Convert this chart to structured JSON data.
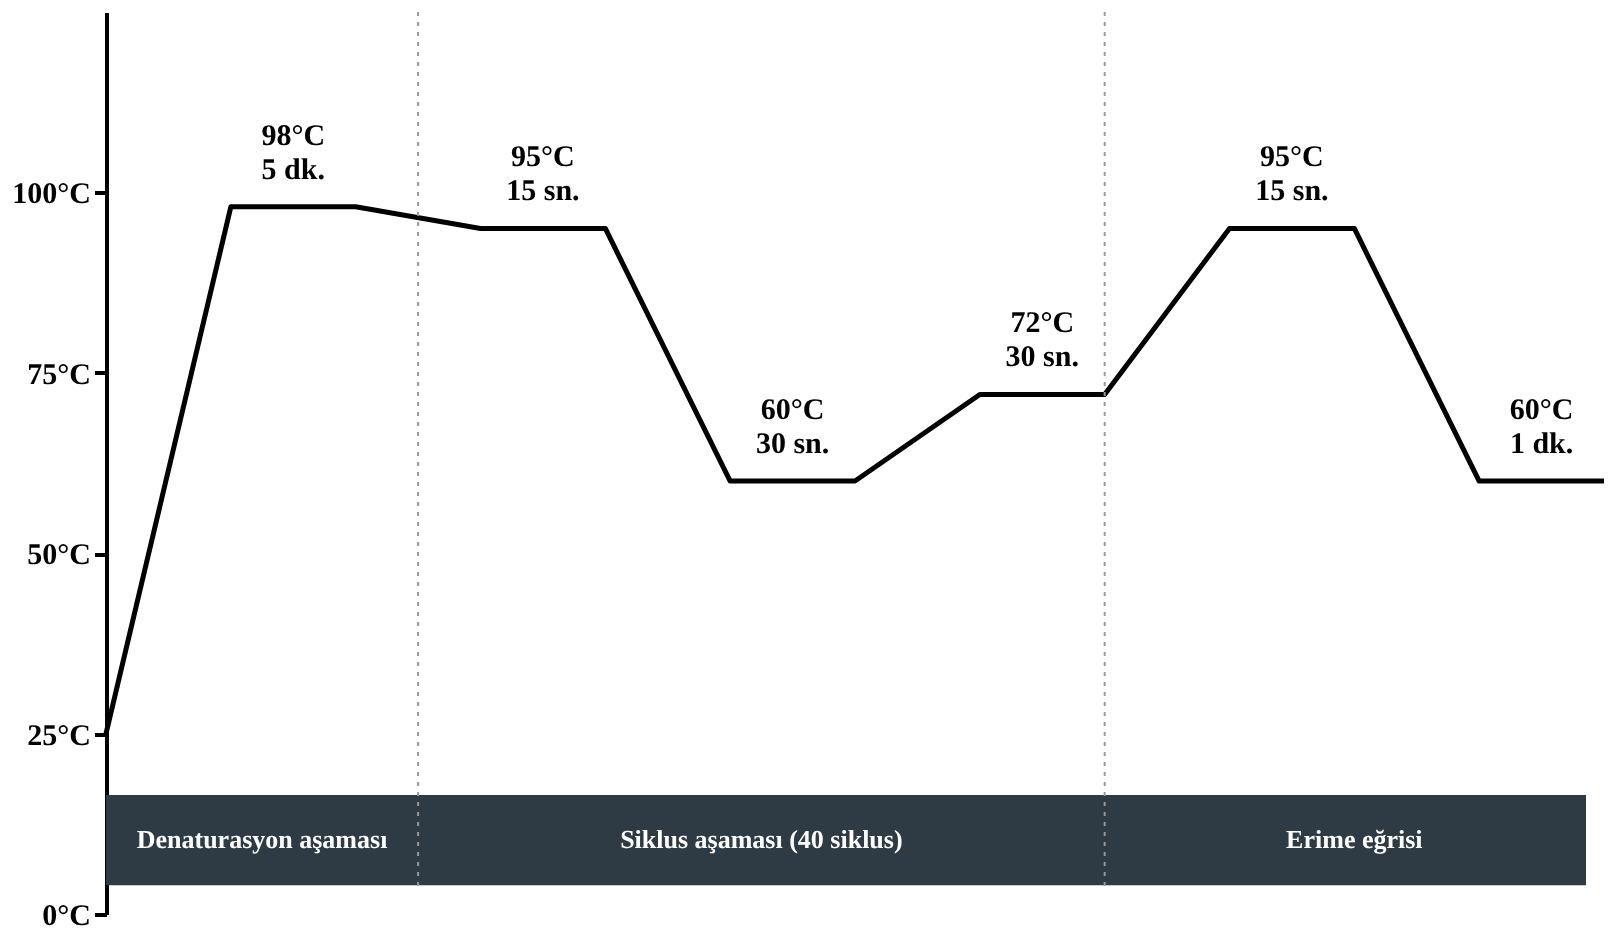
{
  "chart_data": {
    "type": "line",
    "categories": [
      null,
      null,
      null,
      null,
      null,
      null,
      null,
      null,
      null,
      null,
      null,
      null,
      null
    ],
    "series": [
      {
        "color": "#000000",
        "values": [
          25,
          98,
          98,
          95,
          95,
          60,
          60,
          72,
          72,
          95,
          95,
          60,
          60
        ]
      }
    ],
    "ylim": [
      0,
      125
    ],
    "yticks": [
      {
        "value": 0,
        "label": "0°C"
      },
      {
        "value": 25,
        "label": "25°C"
      },
      {
        "value": 50,
        "label": "50°C"
      },
      {
        "value": 75,
        "label": "75°C"
      },
      {
        "value": 100,
        "label": "100°C"
      }
    ],
    "tick_labels": "y",
    "grid": false,
    "marker": "none",
    "line_style": "solid",
    "annotations": [
      {
        "text": "98°C\n5 dk.",
        "y": 98
      },
      {
        "text": "95°C\n15 sn.",
        "y": 95
      },
      {
        "text": "60°C\n30 sn.",
        "y": 60
      },
      {
        "text": "72°C\n30 sn.",
        "y": 72
      },
      {
        "text": "95°C\n15 sn.",
        "y": 95
      },
      {
        "text": "60°C\n1 dk.",
        "y": 60
      },
      "Denaturasyon aşaması",
      "Siklus aşaması (40 siklus)",
      "Erime eğrisi"
    ],
    "bands": [
      {
        "axis": "y",
        "from": 4,
        "to": 16.5,
        "color": "#2e3a44"
      }
    ]
  }
}
